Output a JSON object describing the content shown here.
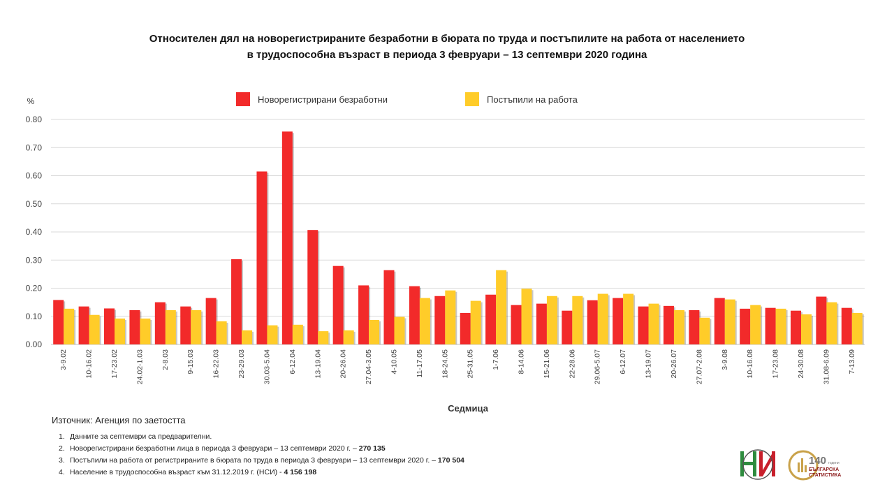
{
  "title_line1": "Относителен дял на новорегистрираните безработни в бюрата по труда и постъпилите на работа от населението",
  "title_line2": "в трудоспособна възраст в периода 3 февруари – 13 септември 2020 година",
  "colors": {
    "series1": "#f22a2a",
    "series2": "#ffcc29",
    "grid": "#d9d9d9",
    "axis": "#bfbfbf"
  },
  "chart_data": {
    "type": "bar",
    "ylabel": "%",
    "xlabel": "Седмица",
    "ylim": [
      0,
      0.8
    ],
    "yticks": [
      "0.00",
      "0.10",
      "0.20",
      "0.30",
      "0.40",
      "0.50",
      "0.60",
      "0.70",
      "0.80"
    ],
    "grid": true,
    "legend_position": "top-center",
    "categories": [
      "3-9.02",
      "10-16.02",
      "17-23.02",
      "24.02-1.03",
      "2-8.03",
      "9-15.03",
      "16-22.03",
      "23-29.03",
      "30.03-5.04",
      "6-12.04",
      "13-19.04",
      "20-26.04",
      "27.04-3.05",
      "4-10.05",
      "11-17.05",
      "18-24.05",
      "25-31.05",
      "1-7.06",
      "8-14.06",
      "15-21.06",
      "22-28.06",
      "29.06-5.07",
      "6-12.07",
      "13-19.07",
      "20-26.07",
      "27.07-2.08",
      "3-9.08",
      "10-16.08",
      "17-23.08",
      "24-30.08",
      "31.08-6.09",
      "7-13.09"
    ],
    "series": [
      {
        "name": "Новорегистрирани безработни",
        "values": [
          0.158,
          0.135,
          0.128,
          0.122,
          0.15,
          0.135,
          0.165,
          0.303,
          0.615,
          0.757,
          0.407,
          0.279,
          0.21,
          0.264,
          0.207,
          0.172,
          0.112,
          0.177,
          0.14,
          0.145,
          0.12,
          0.157,
          0.165,
          0.135,
          0.137,
          0.122,
          0.165,
          0.127,
          0.13,
          0.12,
          0.17,
          0.13
        ]
      },
      {
        "name": "Постъпили на работа",
        "values": [
          0.127,
          0.105,
          0.092,
          0.092,
          0.122,
          0.122,
          0.082,
          0.05,
          0.068,
          0.07,
          0.047,
          0.05,
          0.087,
          0.098,
          0.165,
          0.192,
          0.155,
          0.264,
          0.198,
          0.172,
          0.172,
          0.18,
          0.18,
          0.145,
          0.122,
          0.095,
          0.16,
          0.14,
          0.127,
          0.107,
          0.15,
          0.112
        ]
      }
    ]
  },
  "source": "Източник: Агенция по заетостта",
  "notes": [
    {
      "num": "1.",
      "text": "Данните за септември  са предварителни.",
      "bold": ""
    },
    {
      "num": "2.",
      "text": "Новорегистрирани безработни лица в периода 3 февруари – 13 септември 2020 г. – ",
      "bold": "270 135"
    },
    {
      "num": "3.",
      "text": "Постъпили на работа от регистрираните в бюрата по труда в периода 3 февруари – 13 септември  2020 г. – ",
      "bold": "170 504"
    },
    {
      "num": "4.",
      "text": "Население в трудоспособна възраст към 31.12.2019 г. (НСИ)  - ",
      "bold": "4 156 198"
    }
  ],
  "logo": {
    "badge_number": "140",
    "badge_word": "години",
    "badge_line1": "БЪЛГАРСКА",
    "badge_line2": "СТАТИСТИКА"
  }
}
